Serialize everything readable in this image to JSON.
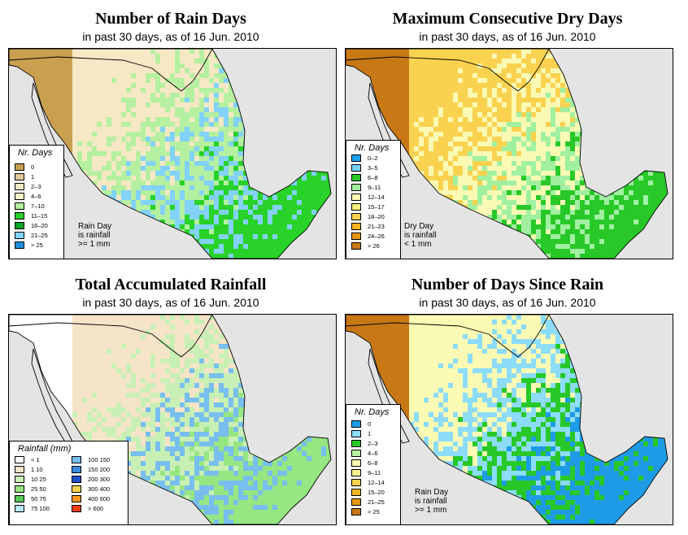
{
  "panels": [
    {
      "title": "Number of Rain Days",
      "subtitle": "in past 30 days, as of  16 Jun. 2010",
      "legend_title": "Nr. Days",
      "legend": [
        {
          "label": "0",
          "color": "#c8a050"
        },
        {
          "label": "1",
          "color": "#e0c898"
        },
        {
          "label": "2–3",
          "color": "#f6e8c4"
        },
        {
          "label": "4–6",
          "color": "#fafac8"
        },
        {
          "label": "7–10",
          "color": "#b4f0a0"
        },
        {
          "label": "11–15",
          "color": "#28d228"
        },
        {
          "label": "16–20",
          "color": "#0aa528"
        },
        {
          "label": "21–25",
          "color": "#82d2fa"
        },
        {
          "label": "> 25",
          "color": "#1e8cdc"
        }
      ],
      "note": [
        "Rain Day",
        "is rainfall",
        ">= 1 mm"
      ],
      "palette": {
        "dry": "#c8a050",
        "light": "#f6e8c4",
        "mid": "#b4f0a0",
        "wet": "#28d228",
        "extra": "#82d2fa"
      }
    },
    {
      "title": "Maximum Consecutive Dry Days",
      "subtitle": "in past 30 days, as of  16 Jun. 2010",
      "legend_title": "Nr. Days",
      "legend": [
        {
          "label": "0–2",
          "color": "#1ea0f0"
        },
        {
          "label": "3–5",
          "color": "#78d2fa"
        },
        {
          "label": "6–8",
          "color": "#28c828"
        },
        {
          "label": "9–11",
          "color": "#a0f0a0"
        },
        {
          "label": "12–14",
          "color": "#fafab4"
        },
        {
          "label": "15–17",
          "color": "#f5f078"
        },
        {
          "label": "18–20",
          "color": "#fad250"
        },
        {
          "label": "21–23",
          "color": "#f5b41e"
        },
        {
          "label": "24–26",
          "color": "#e69614"
        },
        {
          "label": "> 26",
          "color": "#c87814"
        }
      ],
      "note": [
        "Dry Day",
        "is rainfall",
        "< 1 mm"
      ],
      "palette": {
        "dry": "#c87814",
        "light": "#fad250",
        "mid": "#fafab4",
        "wet": "#28c828",
        "extra": "#a0f0a0"
      }
    },
    {
      "title": "Total Accumulated Rainfall",
      "subtitle": "in past 30 days, as of  16 Jun. 2010",
      "legend_title": "Rainfall (mm)",
      "legend": [
        {
          "label": "< 1",
          "color": "#ffffff"
        },
        {
          "label": "1    10",
          "color": "#f6e4c8"
        },
        {
          "label": "10    25",
          "color": "#c8f0b4"
        },
        {
          "label": "25    50",
          "color": "#96e682"
        },
        {
          "label": "50    75",
          "color": "#5ac85a"
        },
        {
          "label": "75  100",
          "color": "#b4e6fa"
        },
        {
          "label": "100  150",
          "color": "#78beee"
        },
        {
          "label": "150  200",
          "color": "#3c8cdc"
        },
        {
          "label": "200  300",
          "color": "#1e50c8"
        },
        {
          "label": "300  400",
          "color": "#fad250"
        },
        {
          "label": "400  600",
          "color": "#fa961e"
        },
        {
          "label": "> 600",
          "color": "#f03c14"
        }
      ],
      "palette": {
        "dry": "#ffffff",
        "light": "#f6e4c8",
        "mid": "#c8f0b4",
        "wet": "#96e682",
        "extra": "#78beee"
      }
    },
    {
      "title": "Number of Days Since Rain",
      "subtitle": "in past 30 days, as of  16 Jun. 2010",
      "legend_title": "Nr. Days",
      "legend": [
        {
          "label": "0",
          "color": "#1e9be6"
        },
        {
          "label": "1",
          "color": "#8cdcfa"
        },
        {
          "label": "2–3",
          "color": "#28c828"
        },
        {
          "label": "4–6",
          "color": "#b4f0a0"
        },
        {
          "label": "6–8",
          "color": "#fafab4"
        },
        {
          "label": "9–11",
          "color": "#f8f08c"
        },
        {
          "label": "12–14",
          "color": "#fad250"
        },
        {
          "label": "15–20",
          "color": "#f5b41e"
        },
        {
          "label": "21–25",
          "color": "#e69614"
        },
        {
          "label": "> 25",
          "color": "#c87814"
        }
      ],
      "note": [
        "Rain Day",
        "is rainfall",
        ">= 1 mm"
      ],
      "palette": {
        "dry": "#c87814",
        "light": "#fafab4",
        "mid": "#8cdcfa",
        "wet": "#1e9be6",
        "extra": "#28c828"
      }
    }
  ]
}
